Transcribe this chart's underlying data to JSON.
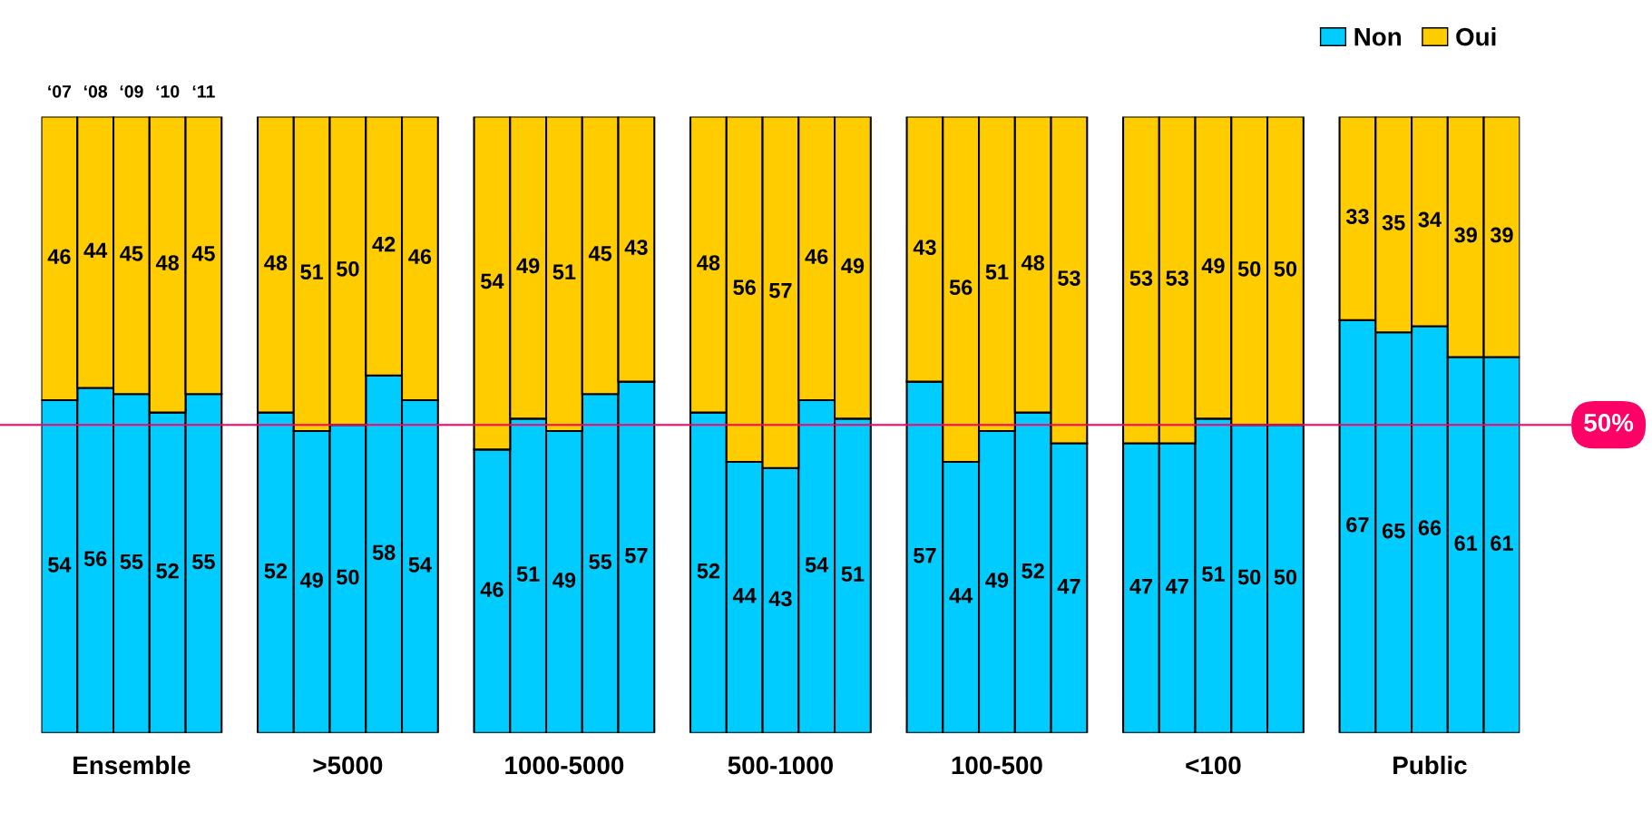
{
  "chart_data": {
    "type": "bar",
    "stacked": true,
    "categories": [
      null,
      null,
      "Ensemble",
      null,
      null,
      null,
      null,
      null,
      ">5000",
      null,
      null,
      null,
      null,
      null,
      "1000-5000",
      null,
      null,
      null,
      null,
      null,
      "500-1000",
      null,
      null,
      null,
      null,
      null,
      "100-500",
      null,
      null,
      null,
      null,
      null,
      "<100",
      null,
      null,
      null,
      null,
      null,
      "Public",
      null,
      null
    ],
    "series": [
      {
        "name": "Non",
        "color": "#00ccff",
        "values": [
          54,
          56,
          55,
          52,
          55,
          null,
          52,
          49,
          50,
          58,
          54,
          null,
          46,
          51,
          49,
          55,
          57,
          null,
          52,
          44,
          43,
          54,
          51,
          null,
          57,
          44,
          49,
          52,
          47,
          null,
          47,
          47,
          51,
          50,
          50,
          null,
          67,
          65,
          66,
          61,
          61
        ]
      },
      {
        "name": "Oui",
        "color": "#ffcc00",
        "values": [
          46,
          44,
          45,
          48,
          45,
          null,
          48,
          51,
          50,
          42,
          46,
          null,
          54,
          49,
          51,
          45,
          43,
          null,
          48,
          56,
          57,
          46,
          49,
          null,
          43,
          56,
          51,
          48,
          53,
          null,
          53,
          53,
          49,
          50,
          50,
          null,
          33,
          35,
          34,
          39,
          39
        ]
      }
    ],
    "data_labels": true,
    "ylim": [
      0,
      100
    ],
    "tick_labels": "x",
    "grid": false,
    "legend": "top right",
    "ref_lines": [
      {
        "axis": "y",
        "value": 50,
        "label": "50%",
        "color": "#ff0066"
      }
    ],
    "annotations": [
      "‘07",
      "‘08",
      "‘09",
      "‘10",
      "‘11"
    ]
  }
}
